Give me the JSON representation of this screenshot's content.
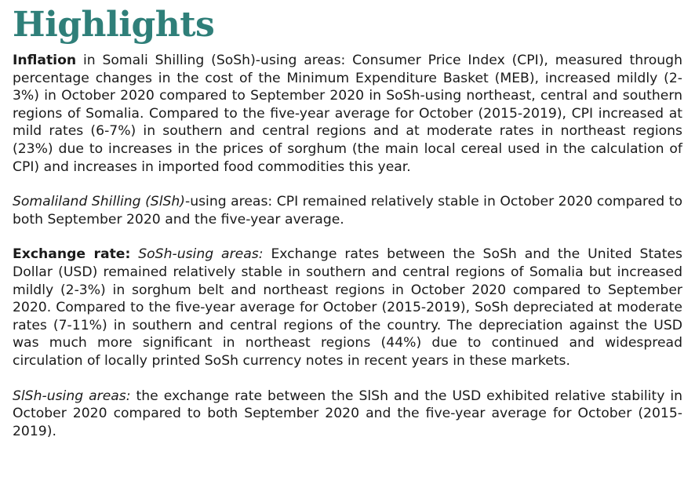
{
  "document": {
    "title": "Highlights",
    "paragraphs": {
      "inflation_sosh": {
        "lead": "Inflation",
        "body": " in Somali Shilling (SoSh)-using areas: Consumer Price Index (CPI), measured through percentage changes in the cost of the Minimum Expenditure Basket (MEB), increased mildly (2-3%) in October 2020 compared to September 2020 in SoSh-using northeast, central and southern regions of Somalia. Compared to the five-year average for October (2015-2019), CPI increased at mild rates (6-7%) in southern and central regions and at moderate rates in northeast regions (23%) due to increases in the prices of sorghum (the main local cereal used in the calculation of CPI) and increases in imported food commodities this year."
      },
      "inflation_sish": {
        "lead_italic": "Somaliland Shilling (SlSh)",
        "body": "-using areas: CPI remained relatively stable in October 2020 compared to both September 2020 and the five-year average."
      },
      "exchange_sosh": {
        "lead": "Exchange rate:",
        "lead_italic": " SoSh-using areas:",
        "body": " Exchange rates between the SoSh and the United States Dollar (USD) remained relatively stable in southern and central regions of Somalia but increased mildly (2-3%) in sorghum belt and northeast regions in October 2020 compared to September 2020. Compared to the five-year average for October (2015-2019), SoSh depreciated at moderate rates (7-11%) in southern and central regions of the country. The depreciation against the USD was much more significant in northeast regions (44%) due to continued and widespread circulation of locally printed SoSh currency notes in recent years in these markets."
      },
      "exchange_sish": {
        "lead_italic": "SlSh-using areas:",
        "body": " the exchange rate between the SlSh and the USD exhibited relative stability in October 2020 compared to both September 2020 and the five-year average for October (2015-2019)."
      }
    }
  }
}
